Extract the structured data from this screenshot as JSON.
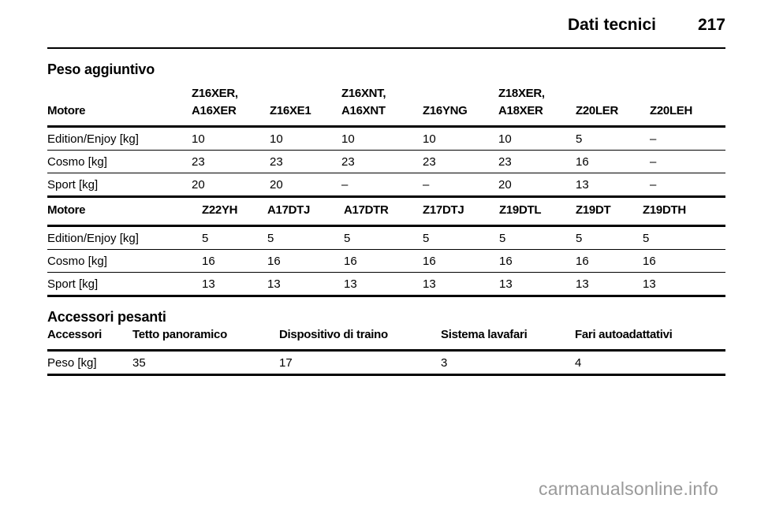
{
  "header": {
    "title": "Dati tecnici",
    "page_number": "217"
  },
  "section1": {
    "title": "Peso aggiuntivo",
    "table1": {
      "headers": [
        [
          "Motore"
        ],
        [
          "Z16XER,",
          "A16XER"
        ],
        [
          "Z16XE1"
        ],
        [
          "Z16XNT,",
          "A16XNT"
        ],
        [
          "Z16YNG"
        ],
        [
          "Z18XER,",
          "A18XER"
        ],
        [
          "Z20LER"
        ],
        [
          "Z20LEH"
        ]
      ],
      "rows": [
        [
          "Edition/Enjoy [kg]",
          "10",
          "10",
          "10",
          "10",
          "10",
          "5",
          "–"
        ],
        [
          "Cosmo [kg]",
          "23",
          "23",
          "23",
          "23",
          "23",
          "16",
          "–"
        ],
        [
          "Sport [kg]",
          "20",
          "20",
          "–",
          "–",
          "20",
          "13",
          "–"
        ]
      ]
    },
    "table2": {
      "headers": [
        "Motore",
        "Z22YH",
        "A17DTJ",
        "A17DTR",
        "Z17DTJ",
        "Z19DTL",
        "Z19DT",
        "Z19DTH"
      ],
      "rows": [
        [
          "Edition/Enjoy [kg]",
          "5",
          "5",
          "5",
          "5",
          "5",
          "5",
          "5"
        ],
        [
          "Cosmo [kg]",
          "16",
          "16",
          "16",
          "16",
          "16",
          "16",
          "16"
        ],
        [
          "Sport [kg]",
          "13",
          "13",
          "13",
          "13",
          "13",
          "13",
          "13"
        ]
      ]
    }
  },
  "section2": {
    "title": "Accessori pesanti",
    "table3": {
      "headers": [
        "Accessori",
        "Tetto panoramico",
        "Dispositivo di traino",
        "Sistema lavafari",
        "Fari autoadattativi"
      ],
      "rows": [
        [
          "Peso [kg]",
          "35",
          "17",
          "3",
          "4"
        ]
      ]
    }
  },
  "watermark": "carmanualsonline.info"
}
